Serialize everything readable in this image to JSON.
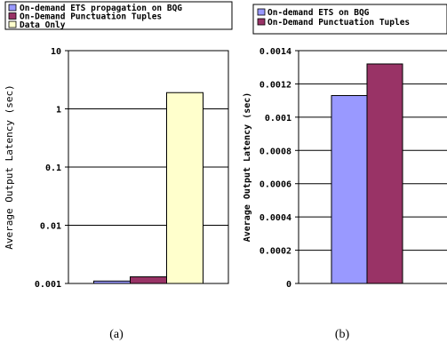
{
  "chart_data": [
    {
      "type": "bar",
      "scale": "log",
      "ylabel": "Average Output Latency (sec)",
      "caption": "(a)",
      "ylim": [
        0.001,
        10
      ],
      "y_ticks": [
        0.001,
        0.01,
        0.1,
        1,
        10
      ],
      "y_tick_labels": [
        "0.001",
        "0.01",
        "0.1",
        "1",
        "10"
      ],
      "series": [
        {
          "name": "On-demand ETS propagation on BQG",
          "values": [
            0.0011
          ],
          "color": "#9999ff"
        },
        {
          "name": "On-Demand Punctuation Tuples",
          "values": [
            0.0013
          ],
          "color": "#993366"
        },
        {
          "name": "Data Only",
          "values": [
            1.9
          ],
          "color": "#ffffcc"
        }
      ],
      "legend": "top"
    },
    {
      "type": "bar",
      "scale": "linear",
      "ylabel": "Average Output Latency (sec)",
      "caption": "(b)",
      "ylim": [
        0,
        0.0014
      ],
      "y_ticks": [
        0,
        0.0002,
        0.0004,
        0.0006,
        0.0008,
        0.001,
        0.0012,
        0.0014
      ],
      "y_tick_labels": [
        "0",
        "0.0002",
        "0.0004",
        "0.0006",
        "0.0008",
        "0.001",
        "0.0012",
        "0.0014"
      ],
      "series": [
        {
          "name": "On-demand ETS on BQG",
          "values": [
            0.00113
          ],
          "color": "#9999ff"
        },
        {
          "name": "On-Demand Punctuation Tuples",
          "values": [
            0.00132
          ],
          "color": "#993366"
        }
      ],
      "legend": "top"
    }
  ]
}
